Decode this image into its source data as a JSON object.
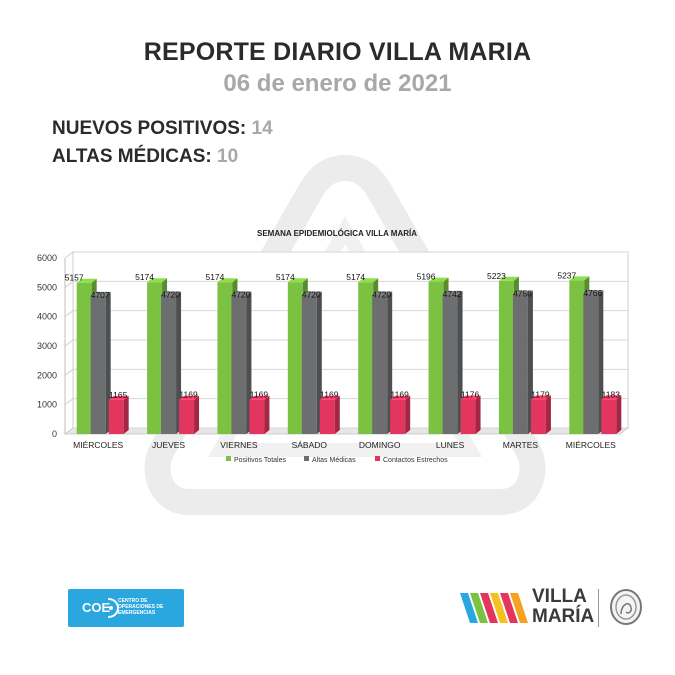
{
  "header": {
    "title": "REPORTE DIARIO VILLA MARIA",
    "date": "06 de enero de 2021"
  },
  "stats": {
    "positivos_label": "NUEVOS POSITIVOS:",
    "positivos_value": "14",
    "altas_label": "ALTAS MÉDICAS:",
    "altas_value": "10"
  },
  "chart_data": {
    "type": "bar",
    "title": "SEMANA EPIDEMIOLÓGICA VILLA MARÍA",
    "categories": [
      "MIÉRCOLES",
      "JUEVES",
      "VIERNES",
      "SÁBADO",
      "DOMINGO",
      "LUNES",
      "MARTES",
      "MIÉRCOLES"
    ],
    "series": [
      {
        "name": "Positivos Totales",
        "color": "#7cc242",
        "values": [
          5157,
          5174,
          5174,
          5174,
          5174,
          5196,
          5223,
          5237
        ]
      },
      {
        "name": "Altas Médicas",
        "color": "#6d6e70",
        "values": [
          4707,
          4720,
          4720,
          4720,
          4720,
          4742,
          4756,
          4766
        ]
      },
      {
        "name": "Contactos Estrechos",
        "color": "#e2365e",
        "values": [
          1165,
          1169,
          1169,
          1169,
          1169,
          1176,
          1179,
          1183
        ]
      }
    ],
    "ylim": [
      0,
      6000
    ],
    "yticks": [
      0,
      1000,
      2000,
      3000,
      4000,
      5000,
      6000
    ],
    "legend_position": "bottom",
    "grid": true
  },
  "logos": {
    "coe_text": "COE",
    "coe_subtitle": "CENTRO DE OPERACIONES DE EMERGENCIAS",
    "vm_line1": "VILLA",
    "vm_line2": "MARÍA",
    "coe_icon": "coe-logo-icon",
    "vm_icon": "villa-maria-stripes-icon",
    "seal_icon": "city-seal-icon"
  }
}
